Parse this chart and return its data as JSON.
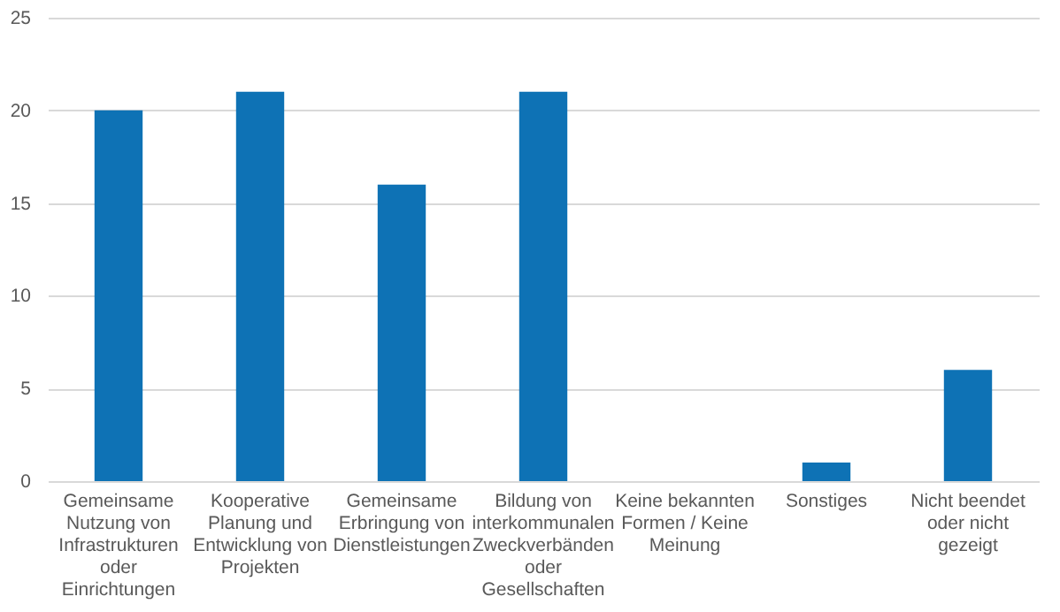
{
  "chart_data": {
    "type": "bar",
    "categories": [
      "Gemeinsame Nutzung von Infrastrukturen oder Einrichtungen",
      "Kooperative Planung und Entwicklung von Projekten",
      "Gemeinsame Erbringung von Dienstleistungen",
      "Bildung von interkommunalen Zweckverbänden oder Gesellschaften",
      "Keine bekannten Formen / Keine Meinung",
      "Sonstiges",
      "Nicht beendet oder nicht gezeigt"
    ],
    "values": [
      20,
      21,
      16,
      21,
      0,
      1,
      6
    ],
    "color": "#0e72b5",
    "ylim": [
      0,
      25
    ],
    "yticks": [
      0,
      5,
      10,
      15,
      20,
      25
    ],
    "grid": "y"
  }
}
